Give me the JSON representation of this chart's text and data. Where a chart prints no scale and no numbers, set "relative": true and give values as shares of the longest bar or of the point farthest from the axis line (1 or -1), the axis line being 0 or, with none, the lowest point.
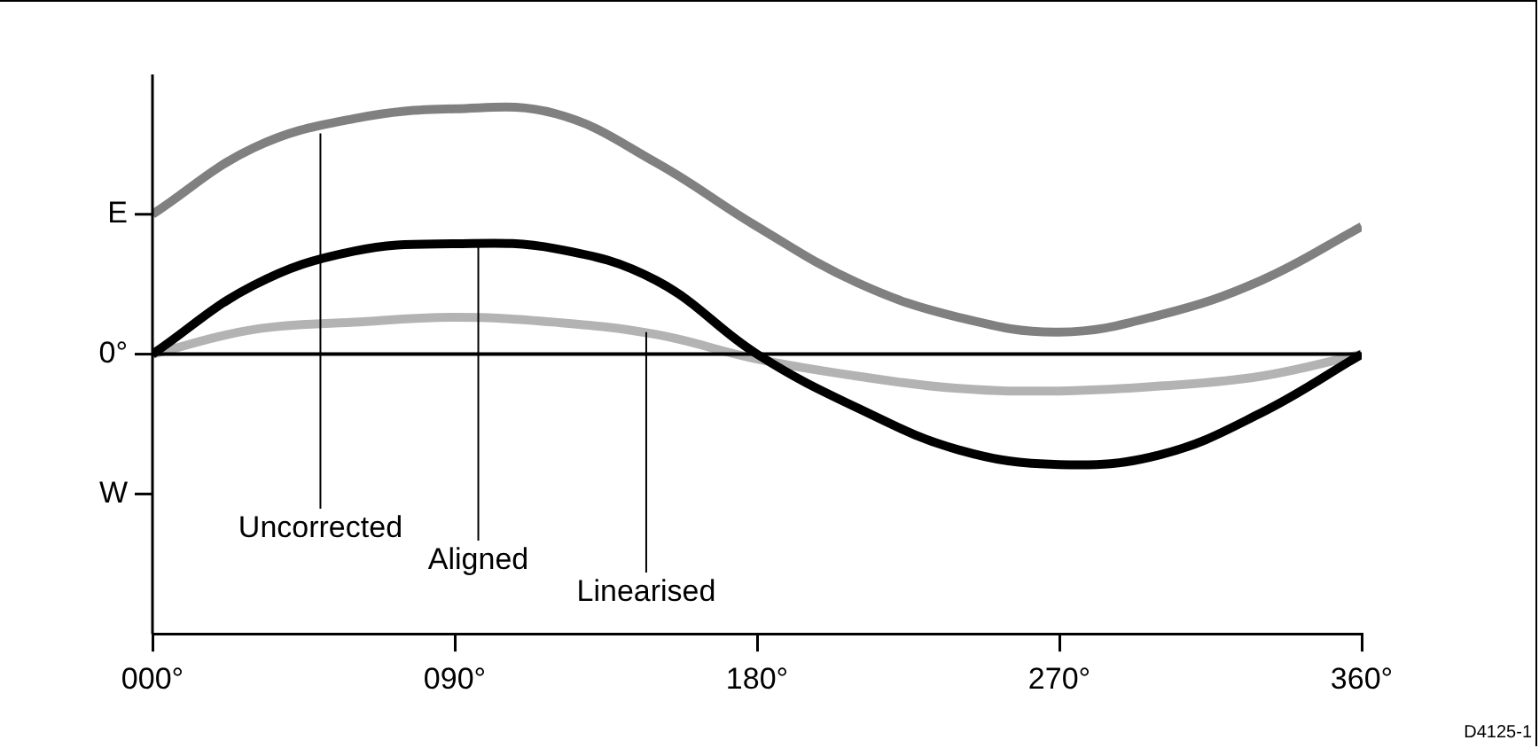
{
  "chart_data": {
    "type": "line",
    "legend": false,
    "grid": false,
    "marker": "none",
    "line_style": "solid",
    "relative": true,
    "xlim": [
      0,
      360
    ],
    "xticks": [
      {
        "value": 0,
        "label": "000°"
      },
      {
        "value": 90,
        "label": "090°"
      },
      {
        "value": 180,
        "label": "180°"
      },
      {
        "value": 270,
        "label": "270°"
      },
      {
        "value": 360,
        "label": "360°"
      }
    ],
    "ref_lines": [
      {
        "axis": "y",
        "value": 0,
        "color": "#000000"
      }
    ],
    "series": [
      {
        "color": "#808080",
        "x": [
          0,
          30,
          60,
          90,
          120,
          150,
          180,
          210,
          240,
          270,
          300,
          330,
          360
        ],
        "values": [
          0.57,
          0.84,
          0.96,
          1,
          0.98,
          0.78,
          0.52,
          0.29,
          0.15,
          0.09,
          0.16,
          0.3,
          0.52
        ]
      },
      {
        "color": "#000000",
        "x": [
          0,
          30,
          60,
          90,
          120,
          150,
          180,
          210,
          240,
          270,
          300,
          330,
          360
        ],
        "values": [
          0,
          0.28,
          0.42,
          0.45,
          0.43,
          0.3,
          0,
          -0.22,
          -0.39,
          -0.45,
          -0.41,
          -0.24,
          0
        ]
      },
      {
        "color": "#b3b3b3",
        "x": [
          0,
          30,
          60,
          90,
          120,
          150,
          180,
          210,
          240,
          270,
          300,
          330,
          360
        ],
        "values": [
          0,
          0.1,
          0.13,
          0.15,
          0.13,
          0.08,
          -0.02,
          -0.09,
          -0.14,
          -0.15,
          -0.13,
          -0.09,
          0
        ]
      }
    ],
    "annotations": [
      {
        "text": "E",
        "x": 0,
        "y": 0.57
      },
      {
        "text": "0°",
        "x": 0,
        "y": 0
      },
      "W",
      {
        "text": "Uncorrected",
        "x": 50,
        "y": 0.9
      },
      {
        "text": "Aligned",
        "x": 97,
        "y": 0.45
      },
      {
        "text": "Linearised",
        "x": 147,
        "y": 0.09
      },
      "D4125-1"
    ]
  }
}
